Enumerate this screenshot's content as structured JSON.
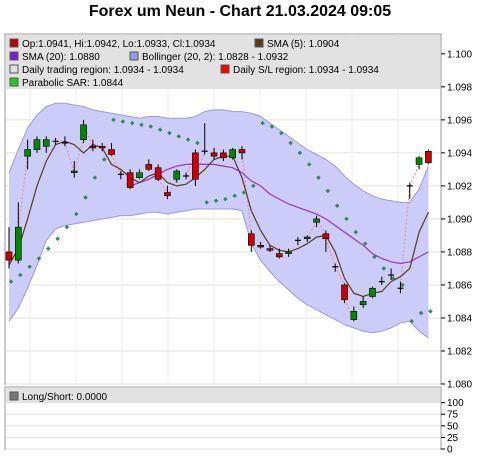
{
  "title": "Forex um Neun - Chart 21.03.2024 09:05",
  "legend": [
    {
      "label": "Op:1.0941, Hi:1.0942, Lo:1.0933, Cl:1.0934",
      "color": "#c00000"
    },
    {
      "label": "SMA (5): 1.0904",
      "color": "#5a3a1e"
    },
    {
      "label": "SMA (20): 1.0880",
      "color": "#7a1fc7"
    },
    {
      "label": "Bollinger (20, 2): 1.0828 - 1.0932",
      "color": "#9999ee"
    },
    {
      "label": "Daily trading region: 1.0934 - 1.0934",
      "color": "#e0e0e0"
    },
    {
      "label": "Daily S/L region: 1.0934 - 1.0934",
      "color": "#ff0000"
    },
    {
      "label": "Parabolic SAR: 1.0844",
      "color": "#22cc22"
    }
  ],
  "colors": {
    "up": "#008800",
    "down": "#cc0000",
    "sma5": "#5a3a1e",
    "sma20": "#9b2fd1",
    "boll_fill": "#ccccf8",
    "boll_line": "#9999e8",
    "sar": "#2e8b57",
    "pink": "#f08ca0"
  },
  "sub_legend": {
    "label": "Long/Short: 0.0000",
    "color": "#777777"
  },
  "chart_data": {
    "type": "candlestick",
    "title": "Forex um Neun - Chart 21.03.2024 09:05",
    "ylim": [
      1.08,
      1.1012
    ],
    "yticks": [
      "1.080",
      "1.082",
      "1.084",
      "1.086",
      "1.088",
      "1.090",
      "1.092",
      "1.094",
      "1.096",
      "1.098",
      "1.100"
    ],
    "candles": [
      {
        "o": 1.088,
        "h": 1.0895,
        "l": 1.087,
        "c": 1.0875
      },
      {
        "o": 1.0875,
        "h": 1.091,
        "l": 1.0873,
        "c": 1.0895
      },
      {
        "o": 1.0938,
        "h": 1.0948,
        "l": 1.093,
        "c": 1.0942
      },
      {
        "o": 1.0942,
        "h": 1.095,
        "l": 1.094,
        "c": 1.0948
      },
      {
        "o": 1.0944,
        "h": 1.095,
        "l": 1.094,
        "c": 1.0948
      },
      {
        "o": 1.0947,
        "h": 1.0949,
        "l": 1.0945,
        "c": 1.0947
      },
      {
        "o": 1.0946,
        "h": 1.095,
        "l": 1.0944,
        "c": 1.0946
      },
      {
        "o": 1.0928,
        "h": 1.0935,
        "l": 1.0925,
        "c": 1.0929
      },
      {
        "o": 1.0948,
        "h": 1.096,
        "l": 1.0946,
        "c": 1.0957
      },
      {
        "o": 1.0944,
        "h": 1.0948,
        "l": 1.0941,
        "c": 1.0943
      },
      {
        "o": 1.0944,
        "h": 1.0946,
        "l": 1.0941,
        "c": 1.0943
      },
      {
        "o": 1.0942,
        "h": 1.0946,
        "l": 1.0938,
        "c": 1.0939
      },
      {
        "o": 1.0927,
        "h": 1.0929,
        "l": 1.0924,
        "c": 1.0927
      },
      {
        "o": 1.0928,
        "h": 1.093,
        "l": 1.0918,
        "c": 1.0919
      },
      {
        "o": 1.0925,
        "h": 1.093,
        "l": 1.0924,
        "c": 1.0928
      },
      {
        "o": 1.0933,
        "h": 1.0936,
        "l": 1.0929,
        "c": 1.093
      },
      {
        "o": 1.0931,
        "h": 1.0933,
        "l": 1.0923,
        "c": 1.0924
      },
      {
        "o": 1.0916,
        "h": 1.092,
        "l": 1.0912,
        "c": 1.0914
      },
      {
        "o": 1.0924,
        "h": 1.093,
        "l": 1.0922,
        "c": 1.0929
      },
      {
        "o": 1.0926,
        "h": 1.0928,
        "l": 1.0924,
        "c": 1.0926
      },
      {
        "o": 1.094,
        "h": 1.0942,
        "l": 1.092,
        "c": 1.0924
      },
      {
        "o": 1.0941,
        "h": 1.0958,
        "l": 1.0939,
        "c": 1.0941
      },
      {
        "o": 1.094,
        "h": 1.0943,
        "l": 1.0936,
        "c": 1.0938
      },
      {
        "o": 1.094,
        "h": 1.0942,
        "l": 1.0935,
        "c": 1.0937
      },
      {
        "o": 1.0937,
        "h": 1.0943,
        "l": 1.0936,
        "c": 1.0942
      },
      {
        "o": 1.0942,
        "h": 1.0944,
        "l": 1.0936,
        "c": 1.094
      },
      {
        "o": 1.0891,
        "h": 1.0893,
        "l": 1.088,
        "c": 1.0884
      },
      {
        "o": 1.0884,
        "h": 1.0886,
        "l": 1.0882,
        "c": 1.0883
      },
      {
        "o": 1.0882,
        "h": 1.0884,
        "l": 1.088,
        "c": 1.0881
      },
      {
        "o": 1.0879,
        "h": 1.0882,
        "l": 1.0876,
        "c": 1.0877
      },
      {
        "o": 1.0879,
        "h": 1.0882,
        "l": 1.0877,
        "c": 1.088
      },
      {
        "o": 1.0887,
        "h": 1.0889,
        "l": 1.0884,
        "c": 1.0887
      },
      {
        "o": 1.0888,
        "h": 1.089,
        "l": 1.0886,
        "c": 1.0889
      },
      {
        "o": 1.0898,
        "h": 1.0902,
        "l": 1.0895,
        "c": 1.09
      },
      {
        "o": 1.0891,
        "h": 1.0893,
        "l": 1.088,
        "c": 1.0888
      },
      {
        "o": 1.0871,
        "h": 1.0873,
        "l": 1.0868,
        "c": 1.0871
      },
      {
        "o": 1.086,
        "h": 1.0861,
        "l": 1.0849,
        "c": 1.0851
      },
      {
        "o": 1.0839,
        "h": 1.0847,
        "l": 1.0838,
        "c": 1.0844
      },
      {
        "o": 1.0848,
        "h": 1.0853,
        "l": 1.0846,
        "c": 1.085
      },
      {
        "o": 1.0853,
        "h": 1.0859,
        "l": 1.0852,
        "c": 1.0858
      },
      {
        "o": 1.0862,
        "h": 1.0865,
        "l": 1.086,
        "c": 1.0862
      },
      {
        "o": 1.0866,
        "h": 1.087,
        "l": 1.0863,
        "c": 1.0866
      },
      {
        "o": 1.0858,
        "h": 1.0862,
        "l": 1.0855,
        "c": 1.0858
      },
      {
        "o": 1.092,
        "h": 1.0922,
        "l": 1.0912,
        "c": 1.092
      },
      {
        "o": 1.0933,
        "h": 1.0938,
        "l": 1.093,
        "c": 1.0937
      },
      {
        "o": 1.0941,
        "h": 1.0942,
        "l": 1.0933,
        "c": 1.0934
      }
    ],
    "sma5": [
      1.0872,
      1.0882,
      1.09,
      1.092,
      1.0935,
      1.0945,
      1.0947,
      1.0945,
      1.094,
      1.0945,
      1.0943,
      1.0933,
      1.093,
      1.0925,
      1.0922,
      1.0926,
      1.0928,
      1.0922,
      1.092,
      1.0921,
      1.0925,
      1.093,
      1.0936,
      1.0938,
      1.0938,
      1.0925,
      1.0905,
      1.0893,
      1.0884,
      1.0881,
      1.088,
      1.0882,
      1.0885,
      1.0889,
      1.089,
      1.088,
      1.0864,
      1.0855,
      1.0853,
      1.0855,
      1.0856,
      1.0862,
      1.0865,
      1.087,
      1.0892,
      1.0904
    ],
    "sma20": [
      null,
      null,
      null,
      null,
      null,
      null,
      null,
      null,
      null,
      null,
      null,
      null,
      null,
      1.092,
      1.0922,
      1.0924,
      1.0927,
      1.093,
      1.0932,
      1.0933,
      1.0933,
      1.0933,
      1.0933,
      1.0932,
      1.0931,
      1.0928,
      1.0923,
      1.092,
      1.0915,
      1.0912,
      1.0909,
      1.0907,
      1.0905,
      1.0903,
      1.09,
      1.0896,
      1.0892,
      1.0888,
      1.0884,
      1.0879,
      1.0876,
      1.0874,
      1.0873,
      1.0874,
      1.0877,
      1.088
    ],
    "boll_upper": [
      1.0928,
      1.0942,
      1.0955,
      1.0963,
      1.0968,
      1.097,
      1.097,
      1.0969,
      1.0968,
      1.0966,
      1.0965,
      1.0964,
      1.0963,
      1.0962,
      1.0961,
      1.0962,
      1.0962,
      1.0961,
      1.0961,
      1.0961,
      1.0962,
      1.0965,
      1.0966,
      1.0966,
      1.0965,
      1.0965,
      1.0964,
      1.0962,
      1.0958,
      1.0954,
      1.095,
      1.0946,
      1.0942,
      1.0939,
      1.0936,
      1.0932,
      1.0926,
      1.0921,
      1.0917,
      1.0914,
      1.0912,
      1.0911,
      1.091,
      1.091,
      1.0918,
      1.0932
    ],
    "boll_lower": [
      1.0838,
      1.0846,
      1.0858,
      1.0872,
      1.0887,
      1.0894,
      1.0896,
      1.0897,
      1.0898,
      1.0899,
      1.09,
      1.0901,
      1.0902,
      1.0902,
      1.0903,
      1.0904,
      1.0904,
      1.0903,
      1.0904,
      1.0905,
      1.0906,
      1.0906,
      1.0906,
      1.0906,
      1.0906,
      1.0905,
      1.0885,
      1.0875,
      1.0868,
      1.0862,
      1.0857,
      1.0852,
      1.0848,
      1.0845,
      1.0842,
      1.0839,
      1.0836,
      1.0834,
      1.0832,
      1.0831,
      1.0832,
      1.0834,
      1.0837,
      1.0838,
      1.0832,
      1.0828
    ],
    "sar": [
      1.0862,
      1.0866,
      1.0871,
      1.0876,
      1.0882,
      1.0888,
      1.0895,
      1.0903,
      1.0913,
      1.0925,
      1.0936,
      1.096,
      1.0959,
      1.0958,
      1.0957,
      1.0956,
      1.0954,
      1.0952,
      1.095,
      1.0948,
      1.0946,
      1.091,
      1.0911,
      1.0912,
      1.0914,
      1.0916,
      1.092,
      1.0958,
      1.0956,
      1.0952,
      1.0946,
      1.094,
      1.0933,
      1.0925,
      1.0917,
      1.0908,
      1.09,
      1.0892,
      1.0885,
      1.0877,
      1.087,
      1.0864,
      1.086,
      1.0838,
      1.0843,
      1.0844
    ],
    "sub_panel": {
      "label": "Long/Short: 0.0000",
      "ylim": [
        0,
        110
      ],
      "yticks": [
        "0",
        "25",
        "50",
        "75",
        "100"
      ]
    }
  }
}
